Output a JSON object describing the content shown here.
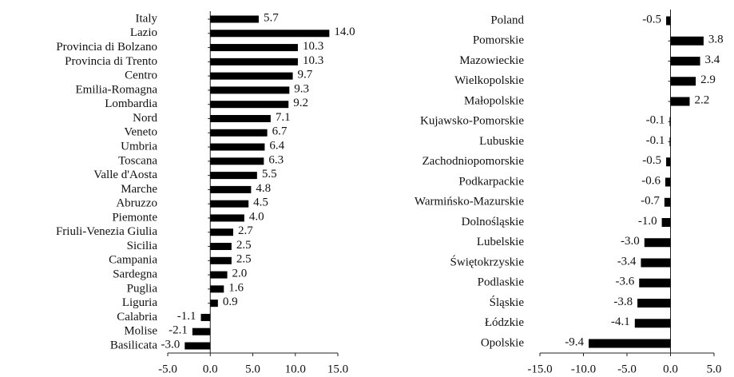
{
  "chart_data": [
    {
      "type": "bar",
      "orientation": "horizontal",
      "color": "#000000",
      "categories": [
        "Italy",
        "Lazio",
        "Provincia di Bolzano",
        "Provincia di Trento",
        "Centro",
        "Emilia-Romagna",
        "Lombardia",
        "Nord",
        "Veneto",
        "Umbria",
        "Toscana",
        "Valle d'Aosta",
        "Marche",
        "Abruzzo",
        "Piemonte",
        "Friuli-Venezia Giulia",
        "Sicilia",
        "Campania",
        "Sardegna",
        "Puglia",
        "Liguria",
        "Calabria",
        "Molise",
        "Basilicata"
      ],
      "values": [
        5.7,
        14.0,
        10.3,
        10.3,
        9.7,
        9.3,
        9.2,
        7.1,
        6.7,
        6.4,
        6.3,
        5.5,
        4.8,
        4.5,
        4.0,
        2.7,
        2.5,
        2.5,
        2.0,
        1.6,
        0.9,
        -1.1,
        -2.1,
        -3.0
      ],
      "value_labels": [
        "5.7",
        "14.0",
        "10.3",
        "10.3",
        "9.7",
        "9.3",
        "9.2",
        "7.1",
        "6.7",
        "6.4",
        "6.3",
        "5.5",
        "4.8",
        "4.5",
        "4.0",
        "2.7",
        "2.5",
        "2.5",
        "2.0",
        "1.6",
        "0.9",
        "-1.1",
        "-2.1",
        "-3.0"
      ],
      "xlim": [
        -5,
        15
      ],
      "xticks": [
        {
          "value": -5,
          "label": "-5.0"
        },
        {
          "value": 0,
          "label": "0.0"
        },
        {
          "value": 5,
          "label": "5.0"
        },
        {
          "value": 10,
          "label": "10.0"
        },
        {
          "value": 15,
          "label": "15.0"
        }
      ]
    },
    {
      "type": "bar",
      "orientation": "horizontal",
      "color": "#000000",
      "categories": [
        "Poland",
        "Pomorskie",
        "Mazowieckie",
        "Wielkopolskie",
        "Małopolskie",
        "Kujawsko-Pomorskie",
        "Lubuskie",
        "Zachodniopomorskie",
        "Podkarpackie",
        "Warmińsko-Mazurskie",
        "Dolnośląskie",
        "Lubelskie",
        "Świętokrzyskie",
        "Podlaskie",
        "Śląskie",
        "Łódzkie",
        "Opolskie"
      ],
      "values": [
        -0.5,
        3.8,
        3.4,
        2.9,
        2.2,
        -0.1,
        -0.1,
        -0.5,
        -0.6,
        -0.7,
        -1.0,
        -3.0,
        -3.4,
        -3.6,
        -3.8,
        -4.1,
        -9.4
      ],
      "value_labels": [
        "-0.5",
        "3.8",
        "3.4",
        "2.9",
        "2.2",
        "-0.1",
        "-0.1",
        "-0.5",
        "-0.6",
        "-0.7",
        "-1.0",
        "-3.0",
        "-3.4",
        "-3.6",
        "-3.8",
        "-4.1",
        "-9.4"
      ],
      "xlim": [
        -15,
        5
      ],
      "xticks": [
        {
          "value": -15,
          "label": "-15.0"
        },
        {
          "value": -10,
          "label": "-10.0"
        },
        {
          "value": -5,
          "label": "-5.0"
        },
        {
          "value": 0,
          "label": "0.0"
        },
        {
          "value": 5,
          "label": "5.0"
        }
      ]
    }
  ]
}
